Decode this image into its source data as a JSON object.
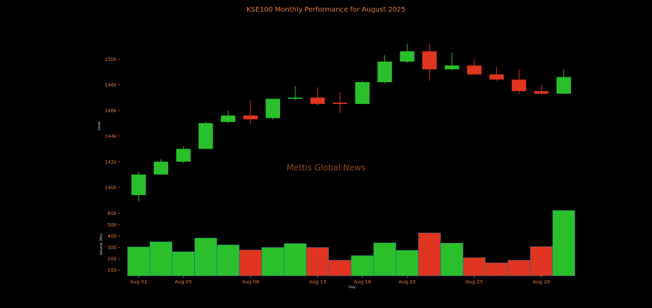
{
  "colors": {
    "up": "#2bc02b",
    "down": "#e03520",
    "text": "#e07b39",
    "background": "#000000"
  },
  "chart_data": [
    {
      "type": "candlestick",
      "title": "KSE100 Monthly Performance for August 2025",
      "ylabel": "Level",
      "yticks": [
        "140k",
        "142k",
        "144k",
        "146k",
        "148k",
        "150k"
      ],
      "ylim": [
        138600,
        151400
      ],
      "watermark": "Mettis Global News",
      "grid": false,
      "candles": [
        {
          "day": "Aug 01",
          "open": 139400,
          "high": 141200,
          "low": 138900,
          "close": 141000
        },
        {
          "day": "Aug 04",
          "open": 141000,
          "high": 142200,
          "low": 141000,
          "close": 142000
        },
        {
          "day": "Aug 05",
          "open": 142000,
          "high": 143200,
          "low": 141900,
          "close": 143000
        },
        {
          "day": "Aug 06",
          "open": 143000,
          "high": 145100,
          "low": 143000,
          "close": 145000
        },
        {
          "day": "Aug 07",
          "open": 145100,
          "high": 146000,
          "low": 145000,
          "close": 145600
        },
        {
          "day": "Aug 08",
          "open": 145600,
          "high": 146800,
          "low": 144900,
          "close": 145300
        },
        {
          "day": "Aug 11",
          "open": 145400,
          "high": 146900,
          "low": 145300,
          "close": 146900
        },
        {
          "day": "Aug 12",
          "open": 146900,
          "high": 147900,
          "low": 146800,
          "close": 147000
        },
        {
          "day": "Aug 13",
          "open": 147000,
          "high": 147800,
          "low": 146400,
          "close": 146500
        },
        {
          "day": "Aug 15",
          "open": 146600,
          "high": 147400,
          "low": 145800,
          "close": 146500
        },
        {
          "day": "Aug 18",
          "open": 146500,
          "high": 148300,
          "low": 146500,
          "close": 148200
        },
        {
          "day": "Aug 19",
          "open": 148200,
          "high": 150300,
          "low": 148100,
          "close": 149800
        },
        {
          "day": "Aug 20",
          "open": 149800,
          "high": 151200,
          "low": 149700,
          "close": 150600
        },
        {
          "day": "Aug 21",
          "open": 150600,
          "high": 151200,
          "low": 148300,
          "close": 149200
        },
        {
          "day": "Aug 22",
          "open": 149200,
          "high": 150500,
          "low": 149100,
          "close": 149500
        },
        {
          "day": "Aug 25",
          "open": 149500,
          "high": 150000,
          "low": 148800,
          "close": 148800
        },
        {
          "day": "Aug 26",
          "open": 148800,
          "high": 149400,
          "low": 148300,
          "close": 148400
        },
        {
          "day": "Aug 27",
          "open": 148400,
          "high": 149200,
          "low": 147300,
          "close": 147500
        },
        {
          "day": "Aug 28",
          "open": 147500,
          "high": 148000,
          "low": 147200,
          "close": 147300
        },
        {
          "day": "Aug 29",
          "open": 147300,
          "high": 149200,
          "low": 147300,
          "close": 148600
        }
      ]
    },
    {
      "type": "bar",
      "xlabel": "Day",
      "ylabel": "Volume (Mn)",
      "yticks": [
        100,
        200,
        300,
        400,
        500,
        600
      ],
      "ylim": [
        50,
        640
      ],
      "xticks": [
        "Aug 01",
        "Aug 05",
        "Aug 08",
        "Aug 13",
        "Aug 18",
        "Aug 20",
        "Aug 25",
        "Aug 28"
      ],
      "categories": [
        "Aug 01",
        "Aug 04",
        "Aug 05",
        "Aug 06",
        "Aug 07",
        "Aug 08",
        "Aug 11",
        "Aug 12",
        "Aug 13",
        "Aug 15",
        "Aug 18",
        "Aug 19",
        "Aug 20",
        "Aug 21",
        "Aug 22",
        "Aug 25",
        "Aug 26",
        "Aug 27",
        "Aug 28",
        "Aug 29"
      ],
      "values": [
        305,
        350,
        262,
        383,
        323,
        278,
        300,
        335,
        300,
        188,
        228,
        340,
        275,
        428,
        338,
        210,
        165,
        188,
        308,
        625
      ],
      "bar_direction": [
        "up",
        "up",
        "up",
        "up",
        "up",
        "down",
        "up",
        "up",
        "down",
        "down",
        "up",
        "up",
        "up",
        "down",
        "up",
        "down",
        "down",
        "down",
        "down",
        "up"
      ]
    }
  ]
}
